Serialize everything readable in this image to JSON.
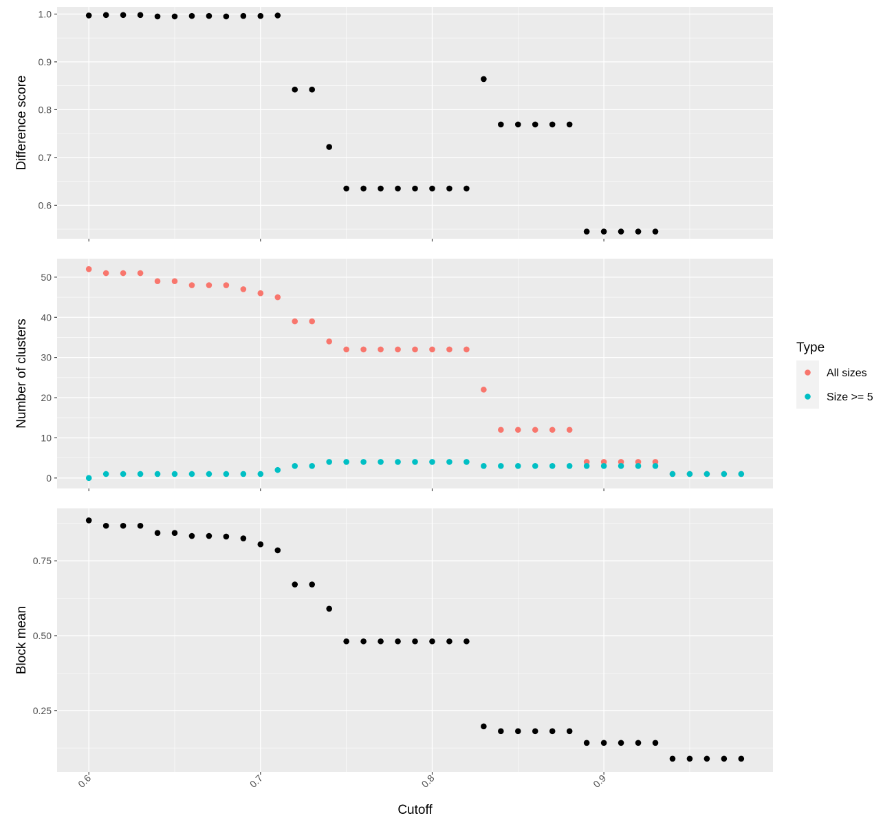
{
  "chart_data": {
    "type": "scatter",
    "xlabel": "Cutoff",
    "xlim": [
      0.5815,
      0.9985
    ],
    "xticks": [
      0.6,
      0.7,
      0.8,
      0.9
    ],
    "xtick_labels": [
      "0.6",
      "0.7",
      "0.8",
      "0.9"
    ],
    "grid": true,
    "legend": {
      "title": "Type",
      "position": "right",
      "entries": [
        {
          "label": "All sizes",
          "color": "#F8766D"
        },
        {
          "label": "Size >= 5",
          "color": "#00BFC4"
        }
      ]
    },
    "panels": [
      {
        "ylabel": "Difference score",
        "ylim": [
          0.53,
          1.015
        ],
        "yticks": [
          0.6,
          0.7,
          0.8,
          0.9,
          1.0
        ],
        "ytick_labels": [
          "0.6",
          "0.7",
          "0.8",
          "0.9",
          "1.0"
        ],
        "series": [
          {
            "color": "#000000",
            "x": [
              0.6,
              0.61,
              0.62,
              0.63,
              0.64,
              0.65,
              0.66,
              0.67,
              0.68,
              0.69,
              0.7,
              0.71,
              0.72,
              0.73,
              0.74,
              0.75,
              0.76,
              0.77,
              0.78,
              0.79,
              0.8,
              0.81,
              0.82,
              0.83,
              0.84,
              0.85,
              0.86,
              0.87,
              0.88,
              0.89,
              0.9,
              0.91,
              0.92,
              0.93
            ],
            "y": [
              0.997,
              0.998,
              0.998,
              0.998,
              0.995,
              0.995,
              0.996,
              0.996,
              0.995,
              0.996,
              0.996,
              0.997,
              0.842,
              0.842,
              0.722,
              0.635,
              0.635,
              0.635,
              0.635,
              0.635,
              0.635,
              0.635,
              0.635,
              0.864,
              0.769,
              0.769,
              0.769,
              0.769,
              0.769,
              0.545,
              0.545,
              0.545,
              0.545,
              0.545
            ]
          }
        ]
      },
      {
        "ylabel": "Number of clusters",
        "ylim": [
          -2.6,
          54.6
        ],
        "yticks": [
          0,
          10,
          20,
          30,
          40,
          50
        ],
        "ytick_labels": [
          "0",
          "10",
          "20",
          "30",
          "40",
          "50"
        ],
        "series": [
          {
            "name": "All sizes",
            "color": "#F8766D",
            "x": [
              0.6,
              0.61,
              0.62,
              0.63,
              0.64,
              0.65,
              0.66,
              0.67,
              0.68,
              0.69,
              0.7,
              0.71,
              0.72,
              0.73,
              0.74,
              0.75,
              0.76,
              0.77,
              0.78,
              0.79,
              0.8,
              0.81,
              0.82,
              0.83,
              0.84,
              0.85,
              0.86,
              0.87,
              0.88,
              0.89,
              0.9,
              0.91,
              0.92,
              0.93,
              0.94,
              0.95,
              0.96,
              0.97,
              0.98
            ],
            "y": [
              52,
              51,
              51,
              51,
              49,
              49,
              48,
              48,
              48,
              47,
              46,
              45,
              39,
              39,
              34,
              32,
              32,
              32,
              32,
              32,
              32,
              32,
              32,
              22,
              12,
              12,
              12,
              12,
              12,
              4,
              4,
              4,
              4,
              4,
              1,
              1,
              1,
              1,
              1
            ]
          },
          {
            "name": "Size >= 5",
            "color": "#00BFC4",
            "x": [
              0.6,
              0.61,
              0.62,
              0.63,
              0.64,
              0.65,
              0.66,
              0.67,
              0.68,
              0.69,
              0.7,
              0.71,
              0.72,
              0.73,
              0.74,
              0.75,
              0.76,
              0.77,
              0.78,
              0.79,
              0.8,
              0.81,
              0.82,
              0.83,
              0.84,
              0.85,
              0.86,
              0.87,
              0.88,
              0.89,
              0.9,
              0.91,
              0.92,
              0.93,
              0.94,
              0.95,
              0.96,
              0.97,
              0.98
            ],
            "y": [
              0,
              1,
              1,
              1,
              1,
              1,
              1,
              1,
              1,
              1,
              1,
              2,
              3,
              3,
              4,
              4,
              4,
              4,
              4,
              4,
              4,
              4,
              4,
              3,
              3,
              3,
              3,
              3,
              3,
              3,
              3,
              3,
              3,
              3,
              1,
              1,
              1,
              1,
              1
            ]
          }
        ]
      },
      {
        "ylabel": "Block mean",
        "ylim": [
          0.045,
          0.925
        ],
        "yticks": [
          0.25,
          0.5,
          0.75
        ],
        "ytick_labels": [
          "0.25",
          "0.50",
          "0.75"
        ],
        "series": [
          {
            "color": "#000000",
            "x": [
              0.6,
              0.61,
              0.62,
              0.63,
              0.64,
              0.65,
              0.66,
              0.67,
              0.68,
              0.69,
              0.7,
              0.71,
              0.72,
              0.73,
              0.74,
              0.75,
              0.76,
              0.77,
              0.78,
              0.79,
              0.8,
              0.81,
              0.82,
              0.83,
              0.84,
              0.85,
              0.86,
              0.87,
              0.88,
              0.89,
              0.9,
              0.91,
              0.92,
              0.93,
              0.94,
              0.95,
              0.96,
              0.97,
              0.98
            ],
            "y": [
              0.885,
              0.867,
              0.867,
              0.867,
              0.843,
              0.843,
              0.833,
              0.833,
              0.831,
              0.825,
              0.805,
              0.785,
              0.671,
              0.671,
              0.59,
              0.481,
              0.481,
              0.481,
              0.481,
              0.481,
              0.481,
              0.481,
              0.481,
              0.197,
              0.181,
              0.181,
              0.181,
              0.181,
              0.181,
              0.142,
              0.142,
              0.142,
              0.142,
              0.142,
              0.089,
              0.089,
              0.089,
              0.089,
              0.089
            ]
          }
        ]
      }
    ]
  }
}
